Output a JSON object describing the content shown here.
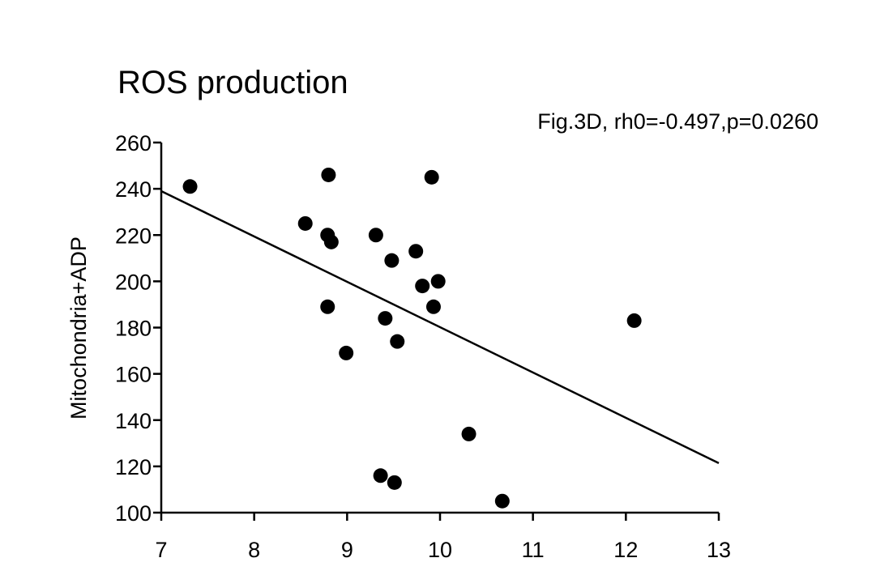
{
  "chart_data": {
    "type": "scatter",
    "title": "ROS production",
    "annotation": "Fig.3D, rh0=-0.497,p=0.0260",
    "y_label": "Mitochondria+ADP",
    "color": "#000000",
    "x": [
      7.31,
      8.8,
      9.91,
      8.55,
      8.79,
      8.83,
      9.31,
      9.74,
      9.48,
      9.98,
      9.81,
      8.79,
      9.93,
      9.41,
      12.09,
      9.54,
      8.99,
      10.31,
      9.36,
      9.51,
      10.67
    ],
    "values": [
      241,
      246,
      245,
      225,
      220,
      217,
      220,
      213,
      209,
      200,
      198,
      189,
      189,
      184,
      183,
      174,
      169,
      134,
      116,
      113,
      105
    ],
    "fit_line": {
      "x": [
        7,
        13
      ],
      "y": [
        239,
        121.4
      ]
    },
    "xlim": [
      7,
      13
    ],
    "xticks": [
      7,
      8,
      9,
      10,
      11,
      12,
      13
    ],
    "ylim": [
      100,
      260
    ],
    "yticks": [
      100,
      120,
      140,
      160,
      180,
      200,
      220,
      240,
      260
    ]
  }
}
